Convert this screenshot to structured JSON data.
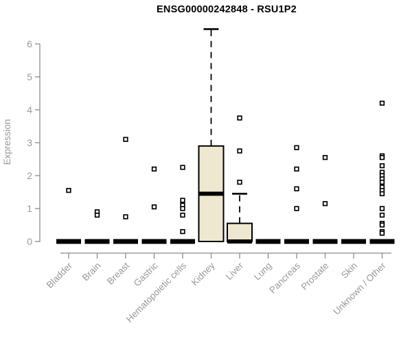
{
  "chart_data": {
    "type": "boxplot",
    "title": "ENSG00000242848 - RSU1P2",
    "ylabel": "Expression",
    "ylim": [
      0,
      6
    ],
    "yticks": [
      0,
      1,
      2,
      3,
      4,
      5,
      6
    ],
    "grid": false,
    "x_label_rotation": -45,
    "categories": [
      "Bladder",
      "Brain",
      "Breast",
      "Gastric",
      "Hematopoietic cells",
      "Kidney",
      "Liver",
      "Lung",
      "Pancreas",
      "Prostate",
      "Skin",
      "Unknown / Other"
    ],
    "boxes": [
      {
        "category": "Bladder",
        "q1": 0,
        "median": 0,
        "q3": 0,
        "whisker_low": 0,
        "whisker_high": 0,
        "outliers": [
          1.55
        ]
      },
      {
        "category": "Brain",
        "q1": 0,
        "median": 0,
        "q3": 0,
        "whisker_low": 0,
        "whisker_high": 0,
        "outliers": [
          0.9,
          0.8
        ]
      },
      {
        "category": "Breast",
        "q1": 0,
        "median": 0,
        "q3": 0,
        "whisker_low": 0,
        "whisker_high": 0,
        "outliers": [
          3.1,
          0.75
        ]
      },
      {
        "category": "Gastric",
        "q1": 0,
        "median": 0,
        "q3": 0,
        "whisker_low": 0,
        "whisker_high": 0,
        "outliers": [
          2.2,
          1.05
        ]
      },
      {
        "category": "Hematopoietic cells",
        "q1": 0,
        "median": 0,
        "q3": 0,
        "whisker_low": 0,
        "whisker_high": 0,
        "outliers": [
          2.25,
          1.25,
          1.1,
          1.0,
          0.8,
          0.3
        ]
      },
      {
        "category": "Kidney",
        "q1": 0,
        "median": 1.45,
        "q3": 2.9,
        "whisker_low": 0,
        "whisker_high": 6.45,
        "outliers": []
      },
      {
        "category": "Liver",
        "q1": 0,
        "median": 0,
        "q3": 0.55,
        "whisker_low": 0,
        "whisker_high": 1.45,
        "outliers": [
          3.75,
          2.75,
          1.8
        ]
      },
      {
        "category": "Lung",
        "q1": 0,
        "median": 0,
        "q3": 0,
        "whisker_low": 0,
        "whisker_high": 0,
        "outliers": []
      },
      {
        "category": "Pancreas",
        "q1": 0,
        "median": 0,
        "q3": 0,
        "whisker_low": 0,
        "whisker_high": 0,
        "outliers": [
          2.85,
          2.2,
          1.6,
          1.0
        ]
      },
      {
        "category": "Prostate",
        "q1": 0,
        "median": 0,
        "q3": 0,
        "whisker_low": 0,
        "whisker_high": 0,
        "outliers": [
          2.55,
          1.15
        ]
      },
      {
        "category": "Skin",
        "q1": 0,
        "median": 0,
        "q3": 0,
        "whisker_low": 0,
        "whisker_high": 0,
        "outliers": []
      },
      {
        "category": "Unknown / Other",
        "q1": 0,
        "median": 0,
        "q3": 0,
        "whisker_low": 0,
        "whisker_high": 0,
        "outliers": [
          4.2,
          2.6,
          2.55,
          2.3,
          2.1,
          2.0,
          1.9,
          1.8,
          1.65,
          1.55,
          1.45,
          1.0,
          0.8,
          0.55,
          0.5,
          0.3,
          0.25
        ]
      }
    ],
    "colors": {
      "box_fill": "#EDE8CF",
      "box_border": "#000000",
      "whisker": "#000000",
      "outlier_fill": "#FFFFFF",
      "axis": "#8C8C8C",
      "tick_label": "#999999",
      "title": "#000000",
      "background": "#FFFFFF"
    }
  }
}
